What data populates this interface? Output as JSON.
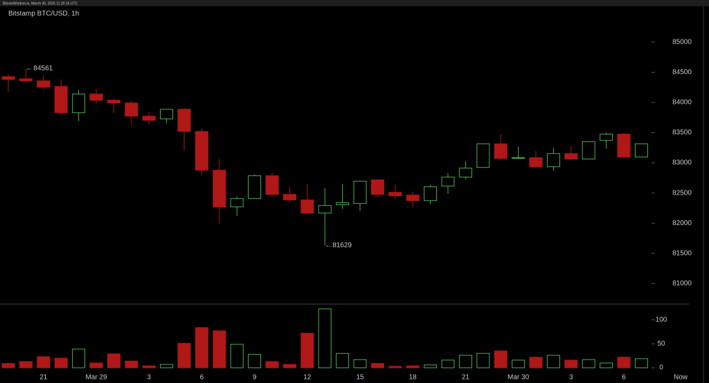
{
  "chart_data": {
    "type": "candlestick",
    "source": "BitcoinWisdom.io, March 30, 2025 11:20:16 UTC",
    "title": "Bitstamp BTC/USD, 1h",
    "categories": [
      null,
      null,
      "21",
      null,
      null,
      "Mar 29",
      null,
      null,
      "3",
      null,
      null,
      "6",
      null,
      null,
      "9",
      null,
      null,
      "12",
      null,
      null,
      "15",
      null,
      null,
      "18",
      null,
      null,
      "21",
      null,
      null,
      "Mar 30",
      null,
      null,
      "3",
      null,
      null,
      "6",
      null
    ],
    "open": [
      84427,
      84392,
      84358,
      84266,
      83830,
      84140,
      84037,
      83991,
      83773,
      83727,
      83887,
      83520,
      82878,
      82270,
      82408,
      82786,
      82477,
      82385,
      82167,
      82305,
      82327,
      82717,
      82511,
      82465,
      82373,
      82614,
      82763,
      82924,
      83314,
      83073,
      83085,
      82935,
      83153,
      83062,
      83371,
      83475,
      83096
    ],
    "high": [
      84472,
      84561,
      84450,
      84381,
      84209,
      84220,
      84060,
      84025,
      83842,
      83887,
      83910,
      83566,
      83062,
      82442,
      82809,
      82832,
      82603,
      82649,
      82580,
      82649,
      82694,
      82729,
      82637,
      82522,
      82637,
      82832,
      83027,
      83314,
      83475,
      83268,
      83199,
      83245,
      83280,
      83349,
      83498,
      83498,
      83314
    ],
    "low": [
      84174,
      84335,
      84197,
      83807,
      83692,
      83979,
      83830,
      83635,
      83635,
      83658,
      83199,
      82798,
      81995,
      82121,
      82408,
      82442,
      82350,
      82155,
      81629,
      82236,
      82201,
      82430,
      82396,
      82259,
      82316,
      82488,
      82729,
      82924,
      83050,
      83062,
      82912,
      82867,
      83050,
      83062,
      83234,
      83073,
      83096
    ],
    "close": [
      84381,
      84358,
      84255,
      83830,
      84140,
      84037,
      83991,
      83773,
      83704,
      83887,
      83520,
      82878,
      82270,
      82408,
      82786,
      82477,
      82385,
      82167,
      82293,
      82339,
      82694,
      82477,
      82454,
      82373,
      82603,
      82763,
      82912,
      83314,
      83073,
      83085,
      82935,
      83153,
      83062,
      83349,
      83475,
      83096,
      83314
    ],
    "volume": [
      9,
      13,
      23,
      20,
      39,
      10,
      29,
      14,
      4,
      7,
      51,
      84,
      77,
      49,
      28,
      13,
      7,
      72,
      123,
      30,
      17,
      9,
      3,
      4,
      6,
      16,
      26,
      30,
      35,
      16,
      22,
      26,
      16,
      17,
      10,
      22,
      19
    ],
    "up_color": "#4caf50",
    "down_color": "#b01717",
    "ylim": [
      80660,
      85560
    ],
    "yticks": [
      81000,
      81500,
      82000,
      82500,
      83000,
      83500,
      84000,
      84500,
      85000
    ],
    "volume_ylim": [
      0,
      133
    ],
    "volume_ticks": [
      0,
      50,
      100
    ],
    "now_label": "Now"
  }
}
